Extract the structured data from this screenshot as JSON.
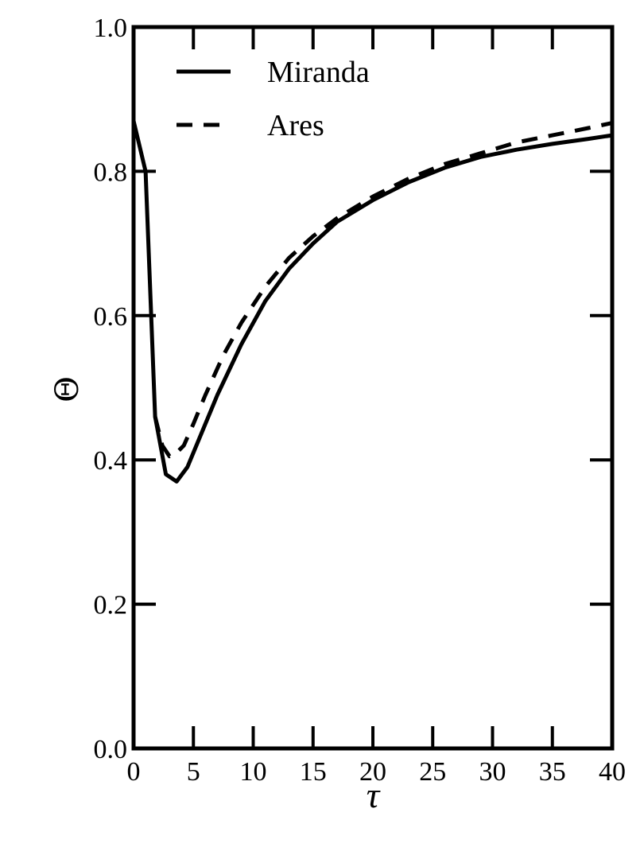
{
  "chart_data": {
    "type": "line",
    "xlabel": "τ",
    "ylabel": "Θ",
    "xlim": [
      0,
      40
    ],
    "ylim": [
      0.0,
      1.0
    ],
    "xticks": [
      0,
      5,
      10,
      15,
      20,
      25,
      30,
      35,
      40
    ],
    "yticks": [
      0.0,
      0.2,
      0.4,
      0.6,
      0.8,
      1.0
    ],
    "xtick_labels": [
      "0",
      "5",
      "10",
      "15",
      "20",
      "25",
      "30",
      "35",
      "40"
    ],
    "ytick_labels": [
      "0.0",
      "0.2",
      "0.4",
      "0.6",
      "0.8",
      "1.0"
    ],
    "grid": false,
    "legend_position": "top-left",
    "series": [
      {
        "name": "Miranda",
        "style": "solid",
        "color": "#000000",
        "x": [
          0,
          1,
          1.8,
          2.7,
          3.6,
          4.5,
          5.5,
          7,
          9,
          11,
          13,
          15,
          17,
          20,
          23,
          26,
          29,
          32,
          35,
          38,
          40
        ],
        "y": [
          0.87,
          0.8,
          0.46,
          0.38,
          0.37,
          0.39,
          0.43,
          0.49,
          0.56,
          0.62,
          0.665,
          0.7,
          0.73,
          0.76,
          0.785,
          0.805,
          0.82,
          0.83,
          0.838,
          0.845,
          0.85
        ]
      },
      {
        "name": "Ares",
        "style": "dashed",
        "color": "#000000",
        "x": [
          1.8,
          2.4,
          3.0,
          3.6,
          4.2,
          5,
          6,
          7.5,
          9,
          11,
          13,
          15,
          17,
          20,
          23,
          26,
          29,
          32,
          35,
          38,
          40
        ],
        "y": [
          0.46,
          0.42,
          0.405,
          0.41,
          0.42,
          0.45,
          0.49,
          0.545,
          0.59,
          0.64,
          0.68,
          0.71,
          0.735,
          0.765,
          0.79,
          0.81,
          0.825,
          0.84,
          0.85,
          0.86,
          0.867
        ]
      }
    ]
  }
}
